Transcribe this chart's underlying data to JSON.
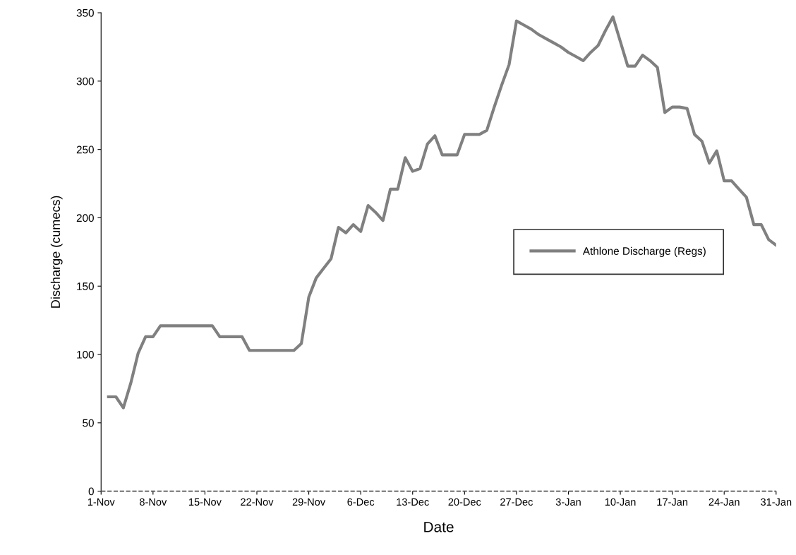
{
  "chart_data": {
    "type": "line",
    "xlabel": "Date",
    "ylabel": "Discharge (cumecs)",
    "categories": [
      "1-Nov",
      null,
      null,
      null,
      null,
      null,
      null,
      "8-Nov",
      null,
      null,
      null,
      null,
      null,
      null,
      "15-Nov",
      null,
      null,
      null,
      null,
      null,
      null,
      "22-Nov",
      null,
      null,
      null,
      null,
      null,
      null,
      "29-Nov",
      null,
      null,
      null,
      null,
      null,
      null,
      "6-Dec",
      null,
      null,
      null,
      null,
      null,
      null,
      "13-Dec",
      null,
      null,
      null,
      null,
      null,
      null,
      "20-Dec",
      null,
      null,
      null,
      null,
      null,
      null,
      "27-Dec",
      null,
      null,
      null,
      null,
      null,
      null,
      "3-Jan",
      null,
      null,
      null,
      null,
      null,
      null,
      "10-Jan",
      null,
      null,
      null,
      null,
      null,
      null,
      "17-Jan",
      null,
      null,
      null,
      null,
      null,
      null,
      "24-Jan",
      null,
      null,
      null,
      null,
      null,
      null,
      "31-Jan"
    ],
    "series": [
      {
        "name": "Athlone Discharge (Regs)",
        "color": "#808080",
        "values": [
          null,
          69,
          69,
          61,
          79,
          101,
          113,
          113,
          121,
          121,
          121,
          121,
          121,
          121,
          121,
          121,
          113,
          113,
          113,
          113,
          103,
          103,
          103,
          103,
          103,
          103,
          103,
          108,
          142,
          156,
          163,
          170,
          193,
          189,
          195,
          190,
          209,
          204,
          198,
          221,
          221,
          244,
          234,
          236,
          254,
          260,
          246,
          246,
          246,
          261,
          261,
          261,
          264,
          281,
          297,
          312,
          344,
          341,
          338,
          334,
          331,
          328,
          325,
          321,
          318,
          315,
          321,
          326,
          337,
          347,
          329,
          311,
          311,
          319,
          315,
          310,
          277,
          281,
          281,
          280,
          261,
          256,
          240,
          249,
          227,
          227,
          221,
          215,
          195,
          195,
          184,
          180
        ]
      }
    ],
    "ylim": [
      0,
      350
    ],
    "yticks": [
      0,
      50,
      100,
      150,
      200,
      250,
      300,
      350
    ],
    "ref_lines": [
      {
        "axis": "y",
        "value": 0,
        "label": null,
        "color": "#555555",
        "line_style": "dashed"
      }
    ],
    "grid": false,
    "legend": "right",
    "marker": "none",
    "line_style": "solid"
  }
}
